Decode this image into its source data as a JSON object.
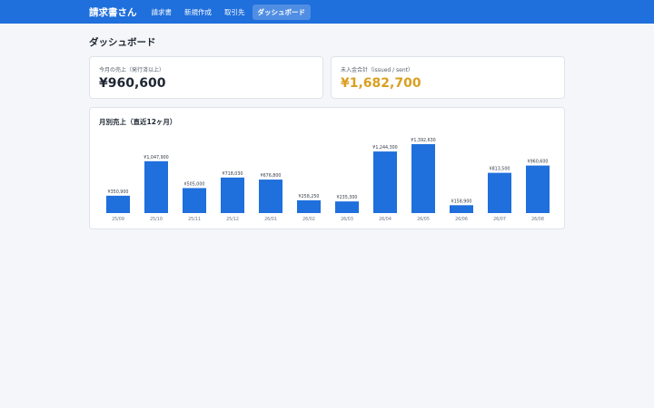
{
  "app": {
    "brand": "請求書さん"
  },
  "nav": {
    "items": [
      {
        "label": "請求書"
      },
      {
        "label": "新規作成"
      },
      {
        "label": "取引先"
      },
      {
        "label": "ダッシュボード",
        "active": true
      }
    ]
  },
  "page": {
    "title": "ダッシュボード"
  },
  "summary": {
    "monthly_sales": {
      "label": "今月の売上（発行済以上）",
      "value": "¥960,600"
    },
    "unpaid_total": {
      "label": "未入金合計（issued / sent）",
      "value": "¥1,682,700",
      "color": "#d8a021"
    }
  },
  "chart_title": "月別売上（直近12ヶ月）",
  "chart_data": {
    "type": "bar",
    "title": "月別売上（直近12ヶ月）",
    "categories": [
      "25/09",
      "25/10",
      "25/11",
      "25/12",
      "26/01",
      "26/02",
      "26/03",
      "26/04",
      "26/05",
      "26/06",
      "26/07",
      "26/08"
    ],
    "values": [
      350900,
      1047900,
      505000,
      718030,
      676800,
      258250,
      235300,
      1244300,
      1392630,
      158900,
      813500,
      960600
    ],
    "labels": [
      "¥350,900",
      "¥1,047,900",
      "¥505,000",
      "¥718,030",
      "¥676,800",
      "¥258,250",
      "¥235,300",
      "¥1,244,300",
      "¥1,392,630",
      "¥158,900",
      "¥813,500",
      "¥960,600"
    ],
    "bar_color": "#1f6fdc",
    "grid": false
  }
}
